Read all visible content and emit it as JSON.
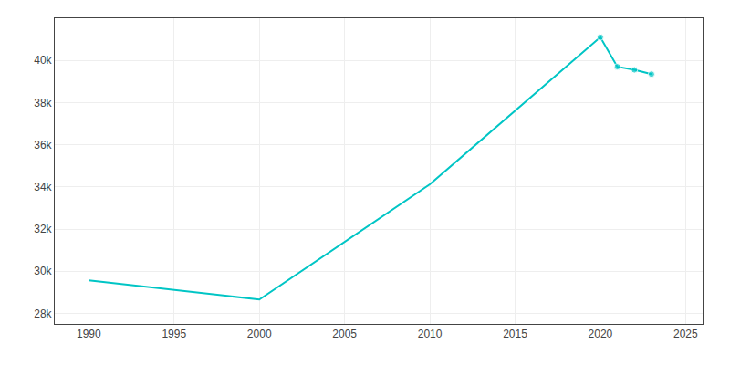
{
  "chart_data": {
    "type": "line",
    "x": [
      1990,
      2000,
      2010,
      2020,
      2021,
      2022,
      2023
    ],
    "values": [
      29564,
      28657,
      34122,
      41100,
      39700,
      39550,
      39350
    ],
    "color": "#00C5C5",
    "marker": "circle",
    "xlim": [
      1988,
      2026
    ],
    "xticks": [
      1990,
      1995,
      2000,
      2005,
      2010,
      2015,
      2020,
      2025
    ],
    "ylim": [
      27500,
      42000
    ],
    "yticks": [
      {
        "value": 28000,
        "label": "28k"
      },
      {
        "value": 30000,
        "label": "30k"
      },
      {
        "value": 32000,
        "label": "32k"
      },
      {
        "value": 34000,
        "label": "34k"
      },
      {
        "value": 36000,
        "label": "36k"
      },
      {
        "value": 38000,
        "label": "38k"
      },
      {
        "value": 40000,
        "label": "40k"
      }
    ],
    "grid": true
  }
}
